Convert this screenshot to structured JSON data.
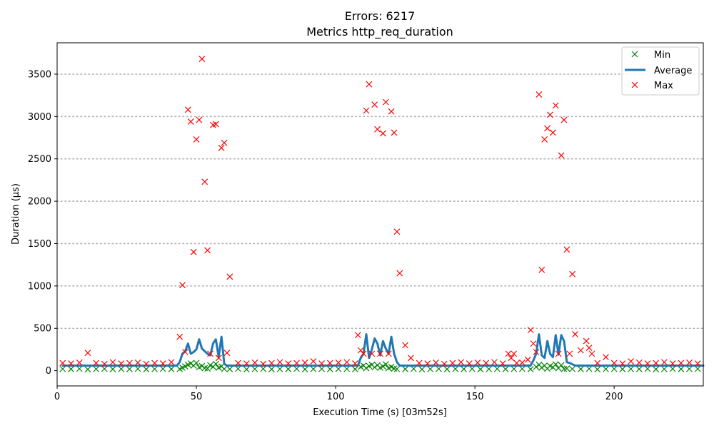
{
  "chart_data": {
    "type": "line",
    "title": "Errors: 6217",
    "subtitle": "Metrics http_req_duration",
    "xlabel": "Execution Time (s) [03m52s]",
    "ylabel": "Duration (µs)",
    "xlim": [
      0,
      232
    ],
    "ylim": [
      -180,
      3870
    ],
    "x_ticks": [
      0,
      50,
      100,
      150,
      200
    ],
    "y_ticks": [
      0,
      500,
      1000,
      1500,
      2000,
      2500,
      3000,
      3500
    ],
    "grid": "horizontal dotted",
    "legend_position": "top-right",
    "colors": {
      "min": "#008000",
      "average": "#1f77b4",
      "max": "#ff0000"
    },
    "series": [
      {
        "name": "Min",
        "marker": "x",
        "x": [
          2,
          5,
          8,
          11,
          14,
          17,
          20,
          23,
          26,
          29,
          32,
          35,
          38,
          41,
          44,
          45,
          46,
          47,
          48,
          49,
          50,
          51,
          52,
          53,
          54,
          55,
          56,
          57,
          58,
          59,
          60,
          62,
          65,
          68,
          71,
          74,
          77,
          80,
          83,
          86,
          89,
          92,
          95,
          98,
          101,
          104,
          107,
          109,
          110,
          111,
          112,
          113,
          114,
          115,
          116,
          117,
          118,
          119,
          120,
          121,
          122,
          125,
          128,
          131,
          134,
          137,
          140,
          143,
          146,
          149,
          152,
          155,
          158,
          161,
          164,
          167,
          170,
          172,
          173,
          174,
          175,
          176,
          177,
          178,
          179,
          180,
          181,
          182,
          183,
          185,
          188,
          191,
          194,
          197,
          200,
          203,
          206,
          209,
          212,
          215,
          218,
          221,
          224,
          227,
          230
        ],
        "y": [
          20,
          18,
          22,
          15,
          19,
          21,
          17,
          20,
          18,
          22,
          16,
          19,
          21,
          18,
          20,
          35,
          50,
          70,
          85,
          60,
          90,
          40,
          55,
          30,
          25,
          65,
          45,
          80,
          35,
          50,
          20,
          18,
          22,
          15,
          19,
          21,
          17,
          20,
          18,
          22,
          16,
          19,
          21,
          18,
          20,
          21,
          17,
          45,
          60,
          30,
          55,
          70,
          40,
          65,
          35,
          50,
          75,
          30,
          45,
          25,
          20,
          18,
          22,
          15,
          19,
          21,
          17,
          20,
          18,
          22,
          16,
          19,
          21,
          18,
          20,
          21,
          17,
          45,
          70,
          35,
          60,
          25,
          55,
          40,
          75,
          30,
          65,
          20,
          25,
          20,
          18,
          22,
          15,
          19,
          21,
          17,
          20,
          18,
          22,
          16,
          19,
          21,
          18,
          20,
          21
        ]
      },
      {
        "name": "Average",
        "marker": "line",
        "x": [
          2,
          10,
          20,
          30,
          40,
          43,
          44,
          45,
          46,
          47,
          48,
          49,
          50,
          51,
          52,
          53,
          54,
          55,
          56,
          57,
          58,
          59,
          60,
          61,
          62,
          65,
          70,
          80,
          90,
          100,
          105,
          108,
          109,
          110,
          111,
          112,
          113,
          114,
          115,
          116,
          117,
          118,
          119,
          120,
          121,
          122,
          123,
          124,
          130,
          140,
          150,
          160,
          165,
          170,
          171,
          172,
          173,
          174,
          175,
          176,
          177,
          178,
          179,
          180,
          181,
          182,
          183,
          184,
          186,
          190,
          200,
          210,
          220,
          232
        ],
        "y": [
          60,
          60,
          60,
          60,
          60,
          60,
          100,
          200,
          230,
          320,
          200,
          220,
          250,
          370,
          260,
          230,
          200,
          180,
          320,
          370,
          160,
          400,
          80,
          60,
          60,
          60,
          60,
          60,
          60,
          60,
          60,
          60,
          150,
          200,
          430,
          150,
          250,
          380,
          320,
          180,
          350,
          260,
          200,
          400,
          200,
          100,
          60,
          60,
          60,
          60,
          60,
          60,
          60,
          60,
          120,
          200,
          430,
          180,
          150,
          350,
          200,
          160,
          420,
          190,
          420,
          350,
          100,
          90,
          60,
          60,
          60,
          60,
          60,
          60
        ]
      },
      {
        "name": "Max",
        "marker": "x",
        "x": [
          2,
          5,
          8,
          11,
          14,
          17,
          20,
          23,
          26,
          29,
          32,
          35,
          38,
          41,
          44,
          45,
          46,
          47,
          48,
          49,
          50,
          51,
          52,
          53,
          54,
          55,
          56,
          57,
          58,
          59,
          60,
          61,
          62,
          65,
          68,
          71,
          74,
          77,
          80,
          83,
          86,
          89,
          92,
          95,
          98,
          101,
          104,
          107,
          108,
          109,
          110,
          111,
          112,
          113,
          114,
          115,
          116,
          117,
          118,
          119,
          120,
          121,
          122,
          123,
          125,
          127,
          130,
          133,
          136,
          139,
          142,
          145,
          148,
          151,
          154,
          157,
          160,
          162,
          163,
          164,
          165,
          167,
          169,
          170,
          171,
          172,
          173,
          174,
          175,
          176,
          177,
          178,
          179,
          180,
          181,
          182,
          183,
          184,
          185,
          186,
          188,
          190,
          191,
          192,
          194,
          197,
          200,
          203,
          206,
          209,
          212,
          215,
          218,
          221,
          224,
          227,
          230
        ],
        "y": [
          90,
          85,
          95,
          210,
          90,
          80,
          100,
          85,
          90,
          95,
          80,
          90,
          85,
          100,
          400,
          1010,
          220,
          3080,
          2940,
          1400,
          2730,
          2960,
          3680,
          2230,
          1420,
          200,
          2900,
          2910,
          150,
          2630,
          2690,
          210,
          1110,
          90,
          85,
          95,
          80,
          90,
          100,
          85,
          90,
          95,
          110,
          85,
          90,
          95,
          100,
          85,
          420,
          240,
          200,
          3070,
          3380,
          200,
          3140,
          2850,
          200,
          2800,
          3170,
          200,
          3060,
          2810,
          1640,
          1150,
          300,
          150,
          90,
          85,
          95,
          80,
          90,
          100,
          85,
          95,
          90,
          100,
          85,
          200,
          150,
          200,
          90,
          95,
          130,
          480,
          320,
          220,
          3260,
          1190,
          2730,
          2860,
          3020,
          2810,
          3130,
          200,
          2540,
          2960,
          1430,
          200,
          1140,
          430,
          240,
          350,
          270,
          200,
          90,
          160,
          90,
          85,
          110,
          95,
          85,
          90,
          100,
          85,
          90,
          95,
          85
        ]
      }
    ]
  }
}
